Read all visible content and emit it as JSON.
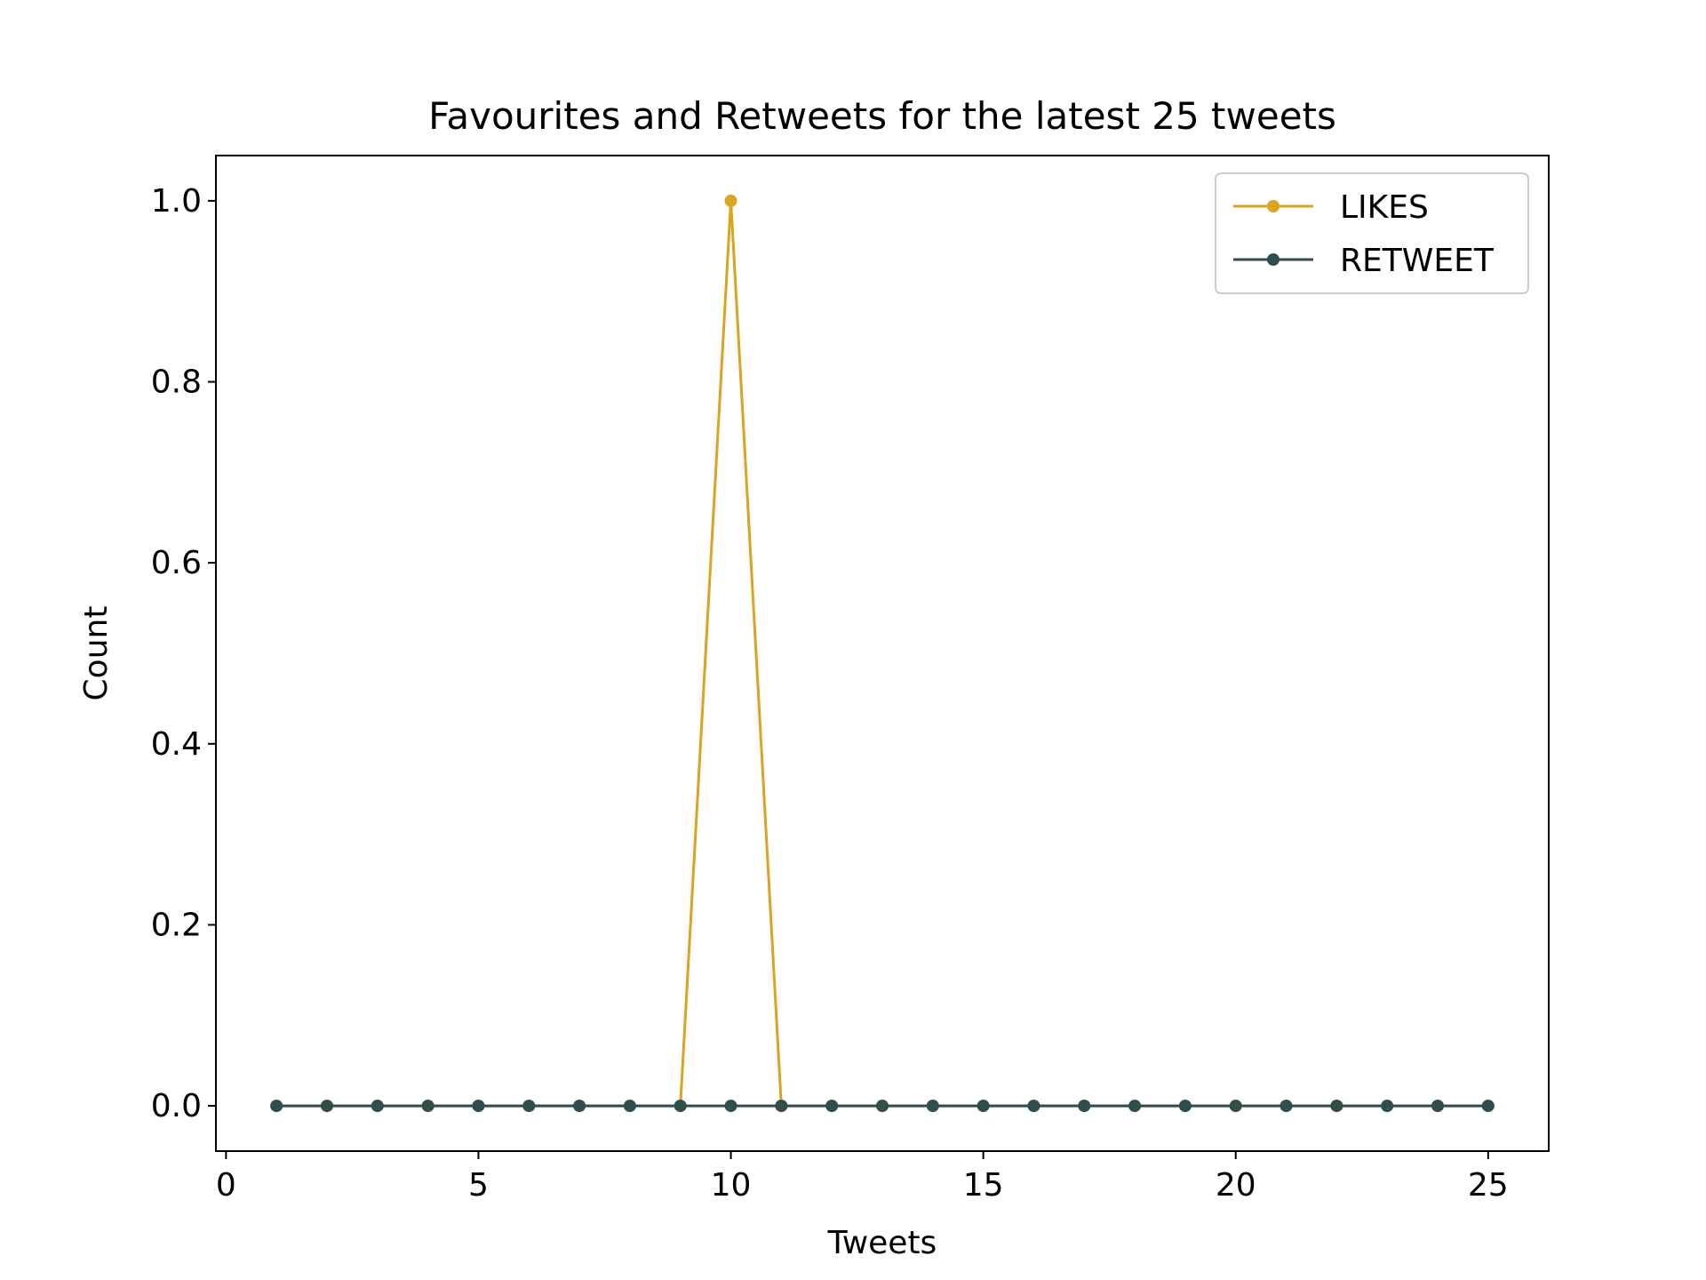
{
  "chart_data": {
    "type": "line",
    "title": "Favourites and Retweets for the latest 25 tweets",
    "xlabel": "Tweets",
    "ylabel": "Count",
    "xlim": [
      -0.2,
      26.2
    ],
    "ylim": [
      -0.05,
      1.05
    ],
    "xticks": [
      0,
      5,
      10,
      15,
      20,
      25
    ],
    "xtick_labels": [
      "0",
      "5",
      "10",
      "15",
      "20",
      "25"
    ],
    "yticks": [
      0.0,
      0.2,
      0.4,
      0.6,
      0.8,
      1.0
    ],
    "ytick_labels": [
      "0.0",
      "0.2",
      "0.4",
      "0.6",
      "0.8",
      "1.0"
    ],
    "grid": false,
    "legend_position": "top-right",
    "x": [
      1,
      2,
      3,
      4,
      5,
      6,
      7,
      8,
      9,
      10,
      11,
      12,
      13,
      14,
      15,
      16,
      17,
      18,
      19,
      20,
      21,
      22,
      23,
      24,
      25
    ],
    "series": [
      {
        "name": "LIKES",
        "color": "#DAA520",
        "values": [
          0,
          0,
          0,
          0,
          0,
          0,
          0,
          0,
          0,
          1,
          0,
          0,
          0,
          0,
          0,
          0,
          0,
          0,
          0,
          0,
          0,
          0,
          0,
          0,
          0
        ]
      },
      {
        "name": "RETWEET",
        "color": "#2F4F4F",
        "values": [
          0,
          0,
          0,
          0,
          0,
          0,
          0,
          0,
          0,
          0,
          0,
          0,
          0,
          0,
          0,
          0,
          0,
          0,
          0,
          0,
          0,
          0,
          0,
          0,
          0
        ]
      }
    ]
  }
}
